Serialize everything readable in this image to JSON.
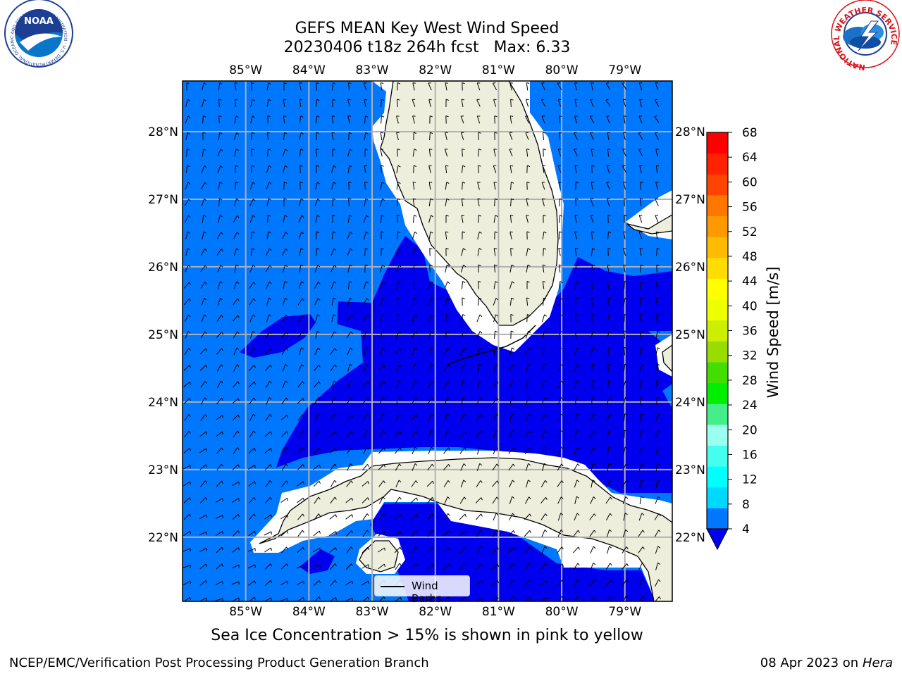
{
  "header": {
    "title_line1": "GEFS MEAN Key West Wind Speed",
    "title_line2": "20230406 t18z 264h fcst   Max: 6.33"
  },
  "logos": {
    "noaa_text": "NOAA",
    "noaa_ring": "NATIONAL OCEANIC AND ATMOSPHERIC ADMINISTRATION · U.S. DEPARTMENT OF COMMERCE",
    "nws_ring": "NATIONAL WEATHER SERVICE"
  },
  "map": {
    "lon_labels": [
      "85°W",
      "84°W",
      "83°W",
      "82°W",
      "81°W",
      "80°W",
      "79°W"
    ],
    "lat_labels": [
      "28°N",
      "27°N",
      "26°N",
      "25°N",
      "24°N",
      "23°N",
      "22°N"
    ],
    "lon_range": [
      -86.0,
      -78.25
    ],
    "lat_range": [
      21.05,
      28.75
    ],
    "colors": {
      "land": "#eeeedd",
      "coast_buffer": "#ffffff",
      "speed_4_8": "#0077ff",
      "speed_lt_4": "#0000ee",
      "gridline": "#b0b0b0"
    }
  },
  "colorbar": {
    "title": "Wind Speed [m/s]",
    "ticks": [
      "4",
      "8",
      "12",
      "16",
      "20",
      "24",
      "28",
      "32",
      "36",
      "40",
      "44",
      "48",
      "52",
      "56",
      "60",
      "64",
      "68"
    ],
    "colors": [
      "#0077ff",
      "#00d9ff",
      "#00ffff",
      "#44ffee",
      "#99ffee",
      "#44ee88",
      "#00ee00",
      "#44dd00",
      "#99dd00",
      "#ccee00",
      "#eeff00",
      "#ffff00",
      "#ffdd00",
      "#ffbb00",
      "#ff9900",
      "#ff7700",
      "#ff4400",
      "#ff2200",
      "#ff0000"
    ],
    "under_color": "#0000ee"
  },
  "legend": {
    "label": "Wind Barbs"
  },
  "notes": {
    "sea_ice": "Sea Ice Concentration > 15% is shown in pink to yellow",
    "branch": "NCEP/EMC/Verification Post Processing Product Generation Branch",
    "date_prefix": "08 Apr 2023 on ",
    "machine": "Hera"
  }
}
